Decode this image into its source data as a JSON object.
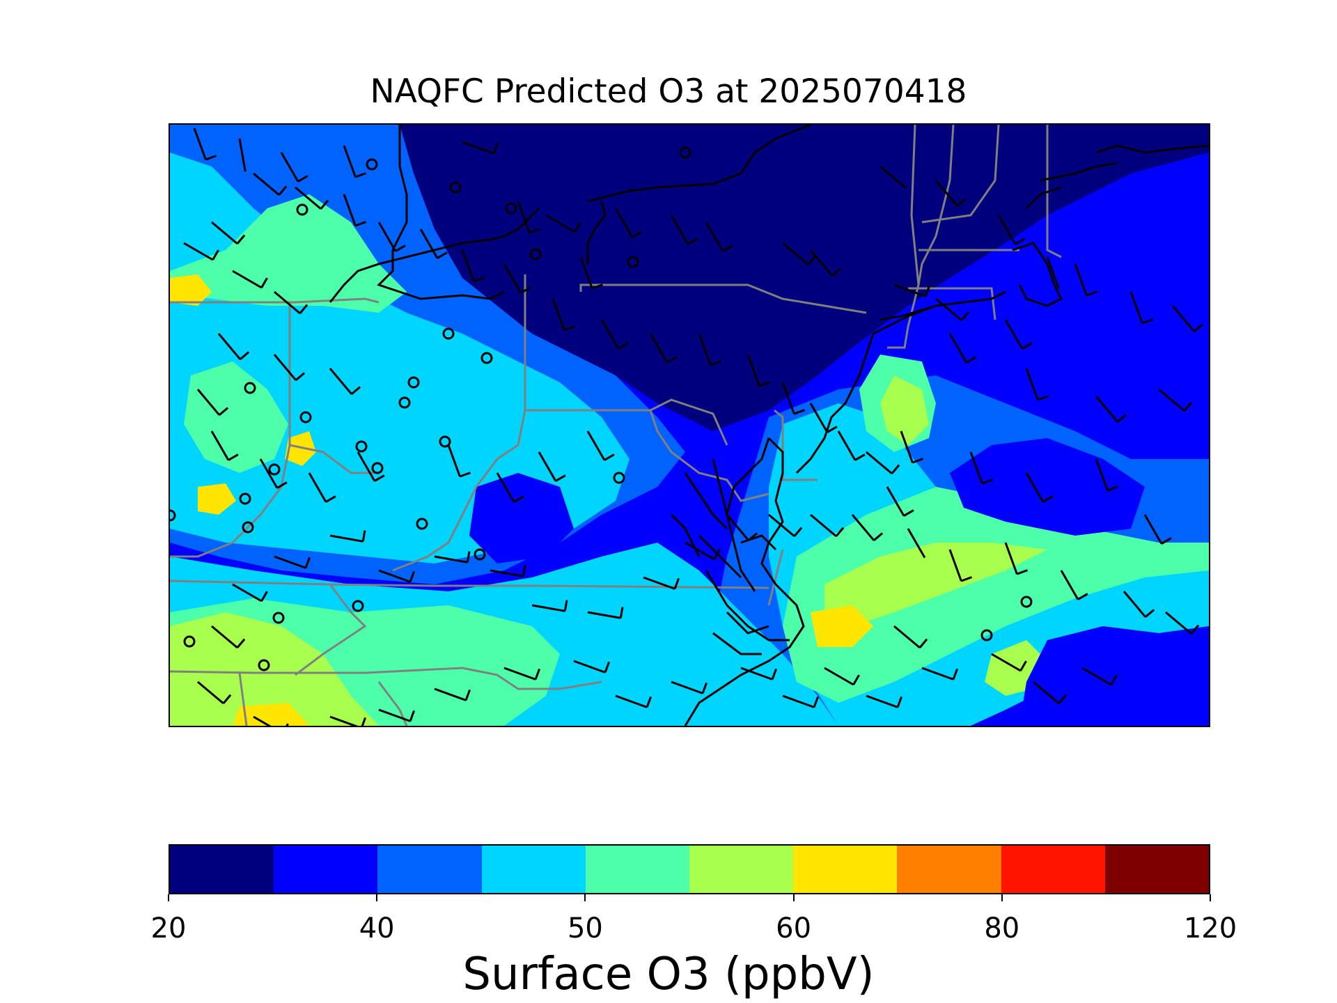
{
  "title": "NAQFC Predicted O3 at 2025070418",
  "colorbar": {
    "label": "Surface O3 (ppbV)",
    "bounds": [
      20,
      30,
      40,
      45,
      50,
      55,
      60,
      70,
      80,
      100,
      120
    ],
    "tick_labels": [
      "20",
      "40",
      "50",
      "60",
      "80",
      "120"
    ],
    "tick_bins": [
      0,
      2,
      4,
      6,
      8,
      10
    ],
    "colors": [
      "#00007f",
      "#0000ff",
      "#0063ff",
      "#00d5ff",
      "#4effa9",
      "#a9ff4e",
      "#ffe500",
      "#ff7f00",
      "#ff1400",
      "#7f0000"
    ]
  },
  "map": {
    "boundary_colors": {
      "coast": "#000000",
      "state": "#808080",
      "barb": "#000000"
    }
  }
}
